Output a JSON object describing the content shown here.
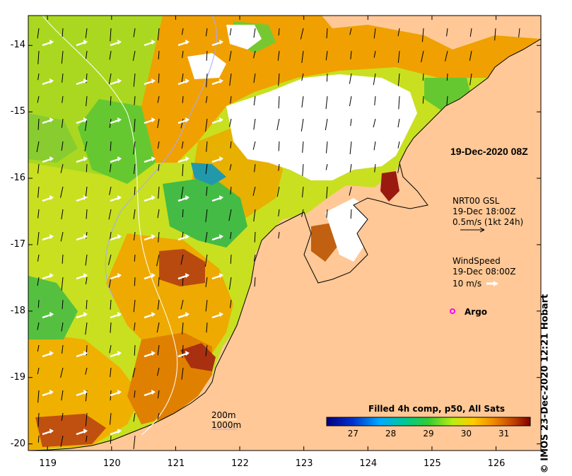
{
  "map": {
    "lon_ticks": [
      "119",
      "120",
      "121",
      "122",
      "123",
      "124",
      "125",
      "126"
    ],
    "lat_ticks": [
      "-14",
      "-15",
      "-16",
      "-17",
      "-18",
      "-19",
      "-20"
    ],
    "lon_range": [
      118.7,
      126.7
    ],
    "lat_range": [
      -13.55,
      -20.1
    ]
  },
  "overlay": {
    "date_title": "19-Dec-2020 08Z",
    "current_label": "NRT00 GSL",
    "current_time": "19-Dec 18:00Z",
    "current_scale": "0.5m/s (1kt 24h)",
    "wind_label": "WindSpeed",
    "wind_time": "19-Dec 08:00Z",
    "wind_scale": "10 m/s",
    "argo_label": "Argo",
    "isobath_200": "200m",
    "isobath_1000": "1000m"
  },
  "colorbar": {
    "title": "Filled 4h comp, p50, All Sats",
    "ticks": [
      "27",
      "28",
      "29",
      "30",
      "31"
    ],
    "range": [
      26.3,
      31.7
    ]
  },
  "credit": "© IMOS 23-Dec-2020 12:21 Hobart",
  "colors": {
    "land": "#ffc896",
    "cloud": "#ffffff",
    "current_arrow": "#000000",
    "wind_arrow": "#ffffff",
    "argo_marker": "#ff00ff"
  }
}
